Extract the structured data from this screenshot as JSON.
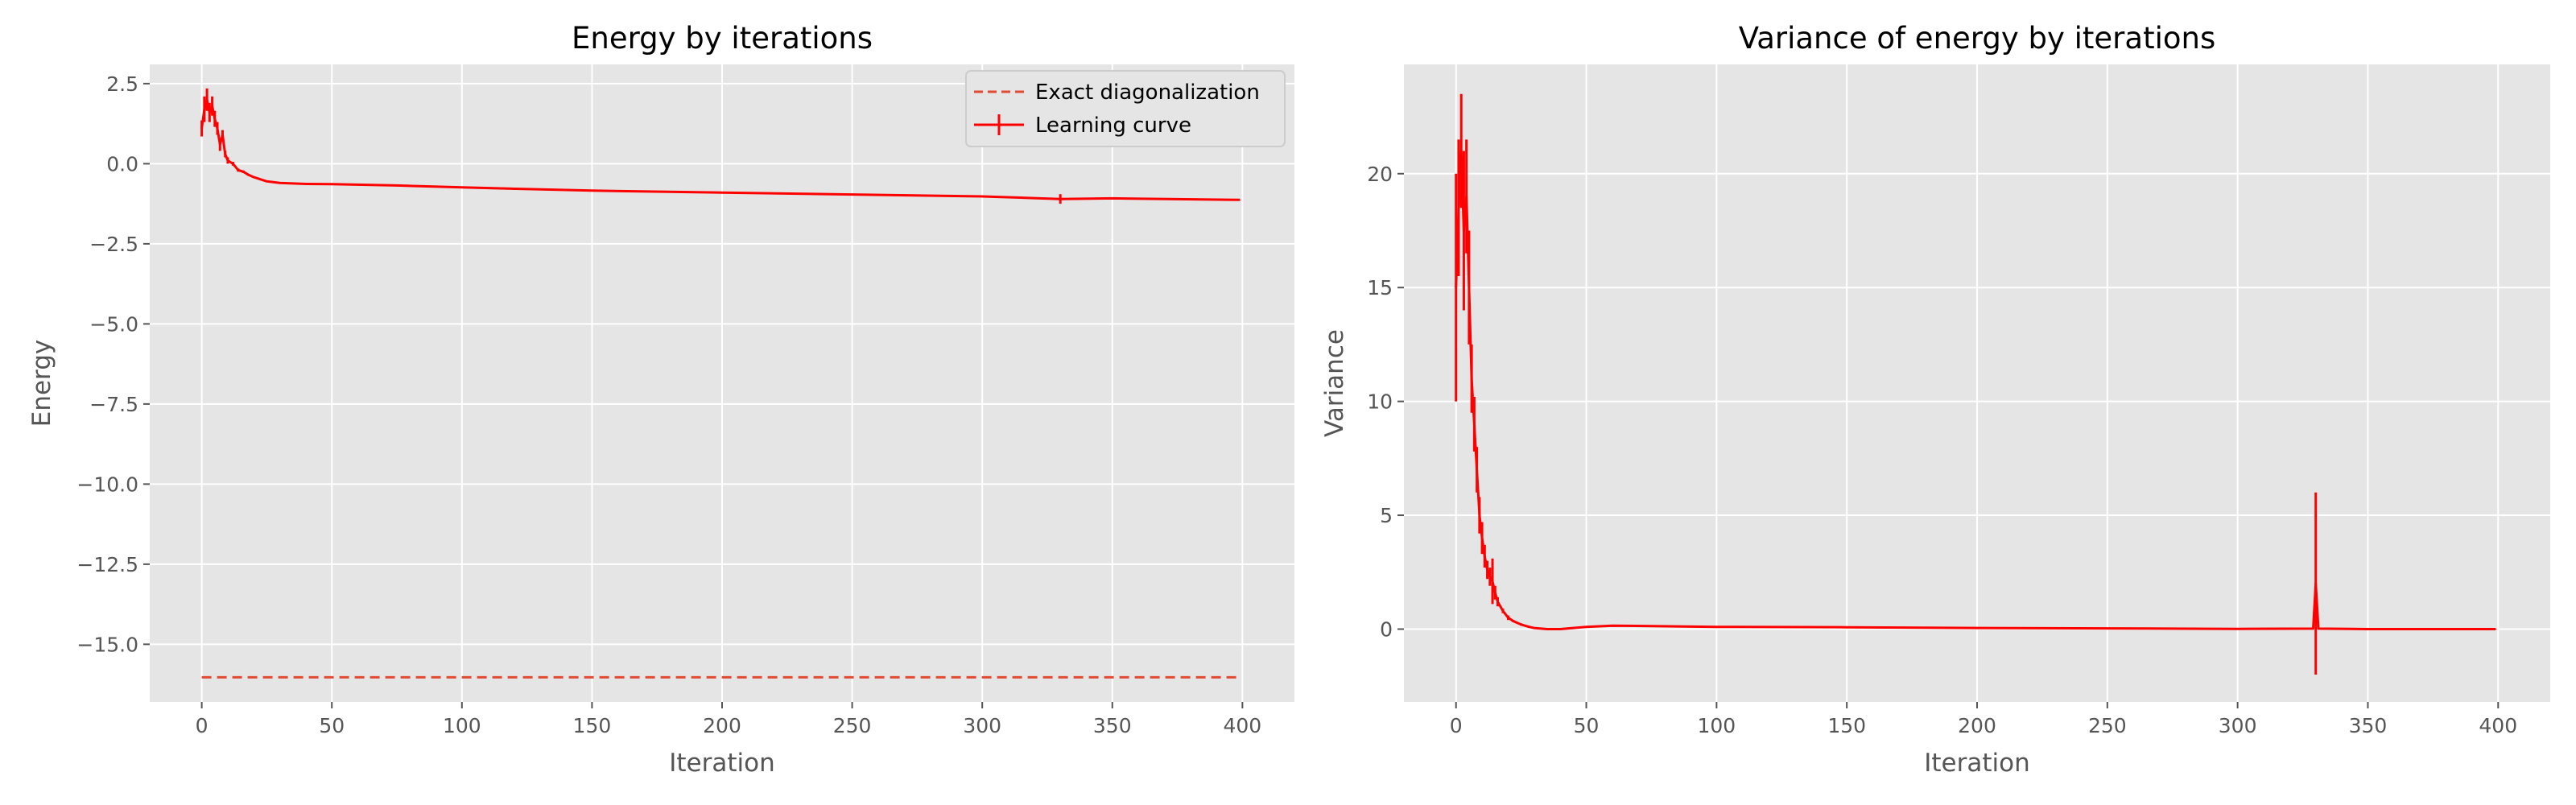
{
  "chart_data": [
    {
      "type": "line",
      "title": "Energy by iterations",
      "xlabel": "Iteration",
      "ylabel": "Energy",
      "xlim": [
        -20,
        420
      ],
      "ylim": [
        -16.8,
        3.1
      ],
      "xticks": [
        0,
        50,
        100,
        150,
        200,
        250,
        300,
        350,
        400
      ],
      "xtick_labels": [
        "0",
        "50",
        "100",
        "150",
        "200",
        "250",
        "300",
        "350",
        "400"
      ],
      "yticks": [
        2.5,
        0,
        -2.5,
        -5,
        -7.5,
        -10,
        -12.5,
        -15
      ],
      "ytick_labels": [
        "2.5",
        "0.0",
        "−2.5",
        "−5.0",
        "−7.5",
        "−10.0",
        "−12.5",
        "−15.0"
      ],
      "grid": true,
      "legend": {
        "position": "top-right",
        "entries": [
          "Exact diagonalization",
          "Learning curve"
        ]
      },
      "series": [
        {
          "name": "Exact diagonalization",
          "style": "dashed",
          "color": "#e24a33",
          "x": [
            0,
            399
          ],
          "y": [
            -16.03,
            -16.03
          ]
        },
        {
          "name": "Learning curve",
          "style": "solid-errorbar",
          "color": "#ff0000",
          "x": [
            0,
            1,
            2,
            3,
            4,
            5,
            6,
            7,
            8,
            9,
            10,
            12,
            14,
            16,
            18,
            20,
            25,
            30,
            40,
            50,
            75,
            100,
            150,
            200,
            250,
            300,
            330,
            350,
            399
          ],
          "y": [
            1.1,
            1.7,
            2.0,
            1.6,
            1.8,
            1.4,
            1.1,
            0.6,
            0.9,
            0.3,
            0.1,
            0.0,
            -0.2,
            -0.25,
            -0.35,
            -0.42,
            -0.55,
            -0.6,
            -0.63,
            -0.64,
            -0.68,
            -0.74,
            -0.84,
            -0.9,
            -0.96,
            -1.02,
            -1.1,
            -1.08,
            -1.13
          ],
          "err": [
            0.25,
            0.4,
            0.35,
            0.3,
            0.3,
            0.25,
            0.2,
            0.2,
            0.15,
            0.1,
            0.1,
            0.06,
            0.05,
            0.04,
            0.03,
            0.02,
            0.02,
            0.01,
            0.01,
            0.01,
            0.01,
            0.01,
            0.01,
            0.01,
            0.01,
            0.01,
            0.15,
            0.01,
            0.01
          ]
        }
      ]
    },
    {
      "type": "line",
      "title": "Variance of energy by iterations",
      "xlabel": "Iteration",
      "ylabel": "Variance",
      "xlim": [
        -20,
        420
      ],
      "ylim": [
        -3.2,
        24.8
      ],
      "xticks": [
        0,
        50,
        100,
        150,
        200,
        250,
        300,
        350,
        400
      ],
      "xtick_labels": [
        "0",
        "50",
        "100",
        "150",
        "200",
        "250",
        "300",
        "350",
        "400"
      ],
      "yticks": [
        20,
        15,
        10,
        5,
        0
      ],
      "ytick_labels": [
        "20",
        "15",
        "10",
        "5",
        "0"
      ],
      "grid": true,
      "series": [
        {
          "style": "solid-errorbar",
          "color": "#ff0000",
          "x": [
            0,
            1,
            2,
            3,
            4,
            5,
            6,
            7,
            8,
            9,
            10,
            11,
            12,
            13,
            14,
            15,
            16,
            18,
            20,
            22,
            25,
            28,
            30,
            35,
            40,
            50,
            60,
            100,
            150,
            200,
            250,
            300,
            329,
            330,
            331,
            350,
            399
          ],
          "y": [
            15.0,
            18.5,
            21.0,
            17.5,
            19.0,
            15.0,
            11.0,
            9.0,
            7.0,
            5.0,
            4.0,
            3.2,
            2.6,
            2.3,
            2.1,
            1.6,
            1.2,
            0.8,
            0.5,
            0.35,
            0.2,
            0.1,
            0.05,
            0.0,
            0.0,
            0.1,
            0.15,
            0.1,
            0.08,
            0.05,
            0.03,
            0.01,
            0.02,
            2.0,
            0.02,
            0.0,
            0.0
          ],
          "err": [
            5.0,
            3.0,
            2.5,
            3.5,
            2.5,
            2.5,
            1.5,
            1.2,
            1.0,
            0.8,
            0.7,
            0.5,
            0.4,
            0.4,
            1.0,
            0.3,
            0.2,
            0.1,
            0.1,
            0.05,
            0.05,
            0.05,
            0.02,
            0.02,
            0.02,
            0.02,
            0.02,
            0.02,
            0.02,
            0.02,
            0.02,
            0.02,
            0.02,
            4.0,
            0.02,
            0.02,
            0.02
          ]
        }
      ]
    }
  ]
}
